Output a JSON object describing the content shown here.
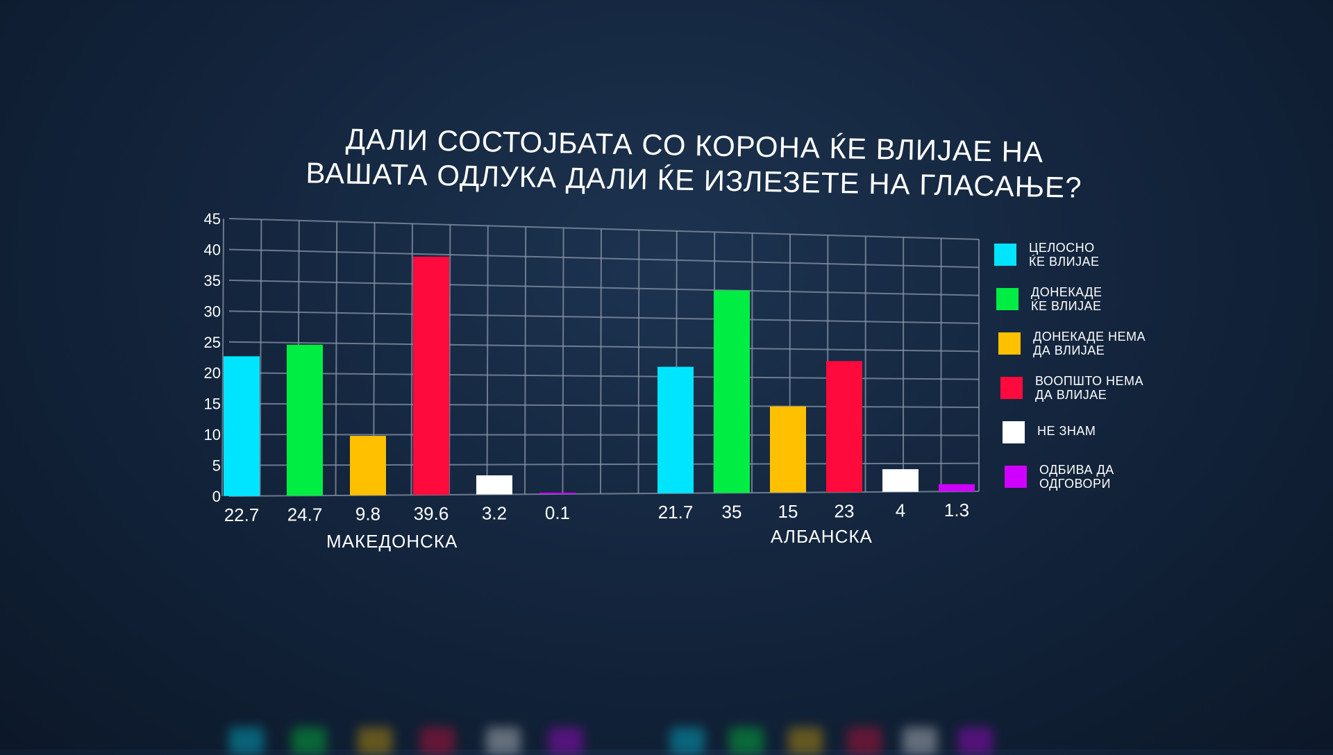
{
  "title_lines": [
    "ДАЛИ СОСТОЈБАТА СО КОРОНА ЌЕ ВЛИЈАЕ НА",
    "ВАШАТА ОДЛУКА ДАЛИ ЌЕ ИЗЛЕЗЕТЕ НА ГЛАСАЊЕ?"
  ],
  "chart_data": {
    "type": "bar",
    "title": "ДАЛИ СОСТОЈБАТА СО КОРОНА ЌЕ ВЛИЈАЕ НА ВАШАТА ОДЛУКА ДАЛИ ЌЕ ИЗЛЕЗЕТЕ НА ГЛАСАЊЕ?",
    "ylim": [
      0,
      45
    ],
    "yticks": [
      0,
      5,
      10,
      15,
      20,
      25,
      30,
      35,
      40,
      45
    ],
    "grid": true,
    "legend_position": "right",
    "series": [
      {
        "name": "ЦЕЛОСНО ЌЕ ВЛИЈАЕ",
        "label_lines": [
          "ЦЕЛОСНО",
          "ЌЕ ВЛИЈАЕ"
        ],
        "color": "#00e5ff"
      },
      {
        "name": "ДОНЕКАДЕ ЌЕ ВЛИЈАЕ",
        "label_lines": [
          "ДОНЕКАДЕ",
          "ЌЕ ВЛИЈАЕ"
        ],
        "color": "#00ee44"
      },
      {
        "name": "ДОНЕКАДЕ НЕМА ДА ВЛИЈАЕ",
        "label_lines": [
          "ДОНЕКАДЕ НЕМА",
          "ДА ВЛИЈАЕ"
        ],
        "color": "#ffc000"
      },
      {
        "name": "ВООПШТО НЕМА ДА ВЛИЈАЕ",
        "label_lines": [
          "ВООПШТО НЕМА",
          "ДА ВЛИЈАЕ"
        ],
        "color": "#ff0a3c"
      },
      {
        "name": "НЕ ЗНАМ",
        "label_lines": [
          "НЕ ЗНАМ"
        ],
        "color": "#ffffff"
      },
      {
        "name": "ОДБИВА ДА ОДГОВОРИ",
        "label_lines": [
          "ОДБИВА ДА",
          "ОДГОВОРИ"
        ],
        "color": "#d000ff"
      }
    ],
    "groups": [
      {
        "name": "МАКЕДОНСКА",
        "values": [
          22.7,
          24.7,
          9.8,
          39.6,
          3.2,
          0.1
        ],
        "labels": [
          "22.7",
          "24.7",
          "9.8",
          "39.6",
          "3.2",
          "0.1"
        ]
      },
      {
        "name": "АЛБАНСКА",
        "values": [
          21.7,
          35,
          15,
          23,
          4,
          1.3
        ],
        "labels": [
          "21.7",
          "35",
          "15",
          "23",
          "4",
          "1.3"
        ]
      }
    ]
  }
}
